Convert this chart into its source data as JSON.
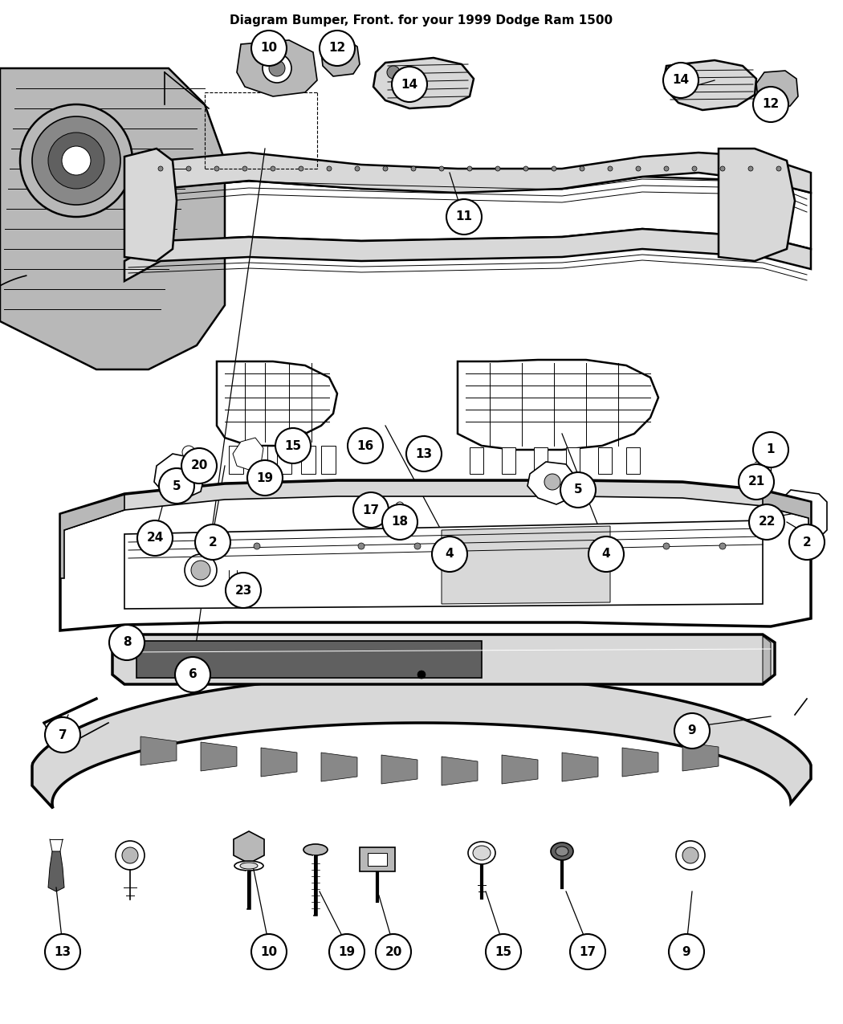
{
  "title": "Diagram Bumper, Front. for your 1999 Dodge Ram 1500",
  "bg": "#ffffff",
  "lc": "#000000",
  "fig_w": 10.5,
  "fig_h": 12.75,
  "callouts": [
    [
      "1",
      960,
      560
    ],
    [
      "2",
      1005,
      675
    ],
    [
      "2",
      265,
      675
    ],
    [
      "4",
      560,
      690
    ],
    [
      "4",
      755,
      690
    ],
    [
      "5",
      220,
      605
    ],
    [
      "5",
      720,
      610
    ],
    [
      "6",
      240,
      840
    ],
    [
      "7",
      78,
      915
    ],
    [
      "8",
      158,
      800
    ],
    [
      "9",
      862,
      910
    ],
    [
      "10",
      335,
      60
    ],
    [
      "11",
      578,
      270
    ],
    [
      "12",
      420,
      60
    ],
    [
      "12",
      960,
      130
    ],
    [
      "13",
      78,
      1185
    ],
    [
      "13",
      528,
      565
    ],
    [
      "14",
      510,
      105
    ],
    [
      "14",
      848,
      100
    ],
    [
      "15",
      365,
      555
    ],
    [
      "15",
      627,
      1185
    ],
    [
      "16",
      455,
      555
    ],
    [
      "17",
      462,
      635
    ],
    [
      "17",
      732,
      1185
    ],
    [
      "18",
      498,
      650
    ],
    [
      "19",
      330,
      595
    ],
    [
      "19",
      432,
      1185
    ],
    [
      "20",
      248,
      580
    ],
    [
      "20",
      490,
      1185
    ],
    [
      "21",
      942,
      600
    ],
    [
      "22",
      955,
      650
    ],
    [
      "23",
      303,
      735
    ],
    [
      "24",
      193,
      670
    ],
    [
      "9",
      855,
      1185
    ],
    [
      "10",
      335,
      1185
    ]
  ]
}
